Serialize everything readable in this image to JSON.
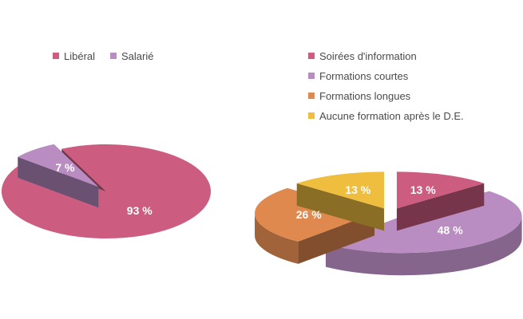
{
  "chart_data": [
    {
      "type": "pie",
      "categories": [
        "Libéral",
        "Salarié"
      ],
      "values": [
        93,
        7
      ],
      "data_labels": [
        "93 %",
        "7 %"
      ],
      "colors": [
        "#cc5c80",
        "#b98cc2"
      ],
      "exploded": [
        "Salarié"
      ],
      "style": "3d",
      "legend_position": "top"
    },
    {
      "type": "pie",
      "categories": [
        "Soirées d'information",
        "Formations courtes",
        "Formations longues",
        "Aucune formation après le D.E."
      ],
      "values": [
        13,
        48,
        26,
        13
      ],
      "data_labels": [
        "13 %",
        "48 %",
        "26 %",
        "13 %"
      ],
      "colors": [
        "#cc5c80",
        "#b98cc2",
        "#e0894f",
        "#efbe3f"
      ],
      "exploded": [
        "Soirées d'information",
        "Formations courtes",
        "Formations longues",
        "Aucune formation après le D.E."
      ],
      "style": "3d",
      "legend_position": "top"
    }
  ]
}
